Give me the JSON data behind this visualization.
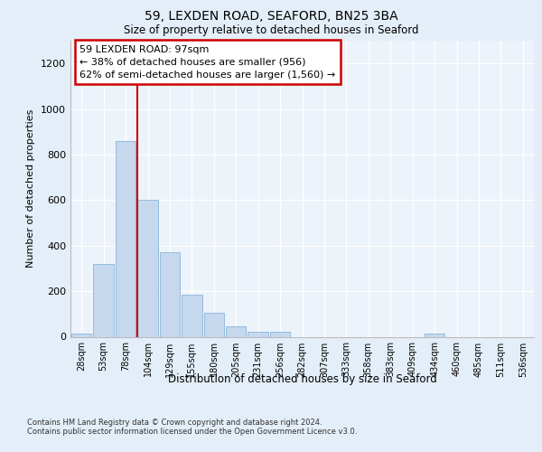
{
  "title_line1": "59, LEXDEN ROAD, SEAFORD, BN25 3BA",
  "title_line2": "Size of property relative to detached houses in Seaford",
  "xlabel": "Distribution of detached houses by size in Seaford",
  "ylabel": "Number of detached properties",
  "categories": [
    "28sqm",
    "53sqm",
    "78sqm",
    "104sqm",
    "129sqm",
    "155sqm",
    "180sqm",
    "205sqm",
    "231sqm",
    "256sqm",
    "282sqm",
    "307sqm",
    "333sqm",
    "358sqm",
    "383sqm",
    "409sqm",
    "434sqm",
    "460sqm",
    "485sqm",
    "511sqm",
    "536sqm"
  ],
  "values": [
    15,
    320,
    860,
    600,
    370,
    185,
    105,
    45,
    20,
    20,
    0,
    0,
    0,
    0,
    0,
    0,
    15,
    0,
    0,
    0,
    0
  ],
  "bar_color": "#c5d8ee",
  "bar_edge_color": "#8ab4d8",
  "highlight_line_color": "#cc0000",
  "annotation_text": "59 LEXDEN ROAD: 97sqm\n← 38% of detached houses are smaller (956)\n62% of semi-detached houses are larger (1,560) →",
  "annotation_box_facecolor": "#ffffff",
  "annotation_box_edgecolor": "#cc0000",
  "ylim": [
    0,
    1300
  ],
  "yticks": [
    0,
    200,
    400,
    600,
    800,
    1000,
    1200
  ],
  "footer_text": "Contains HM Land Registry data © Crown copyright and database right 2024.\nContains public sector information licensed under the Open Government Licence v3.0.",
  "fig_facecolor": "#e4eef8",
  "axes_facecolor": "#edf3fa"
}
